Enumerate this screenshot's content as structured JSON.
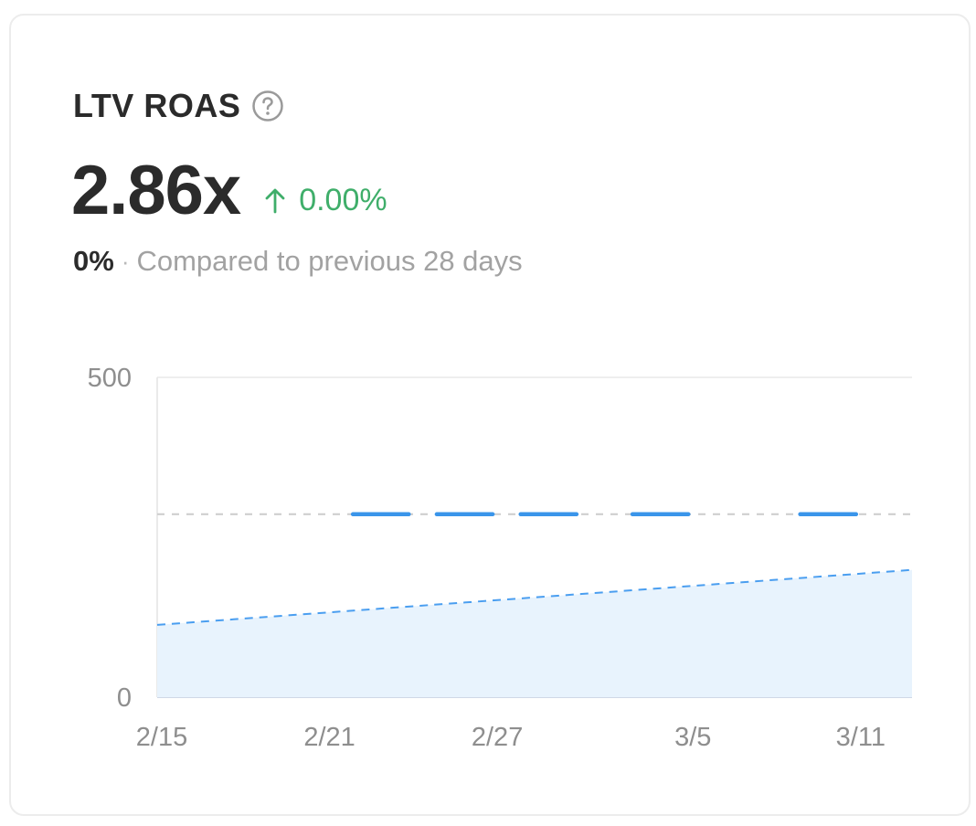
{
  "card": {
    "title": "LTV ROAS",
    "help_icon": "question-circle-icon",
    "value": "2.86x",
    "delta": {
      "icon": "arrow-up-icon",
      "text": "0.00%",
      "color": "#3fae6a"
    },
    "compare": {
      "percent": "0%",
      "separator": "·",
      "text": "Compared to previous 28 days"
    }
  },
  "chart_data": {
    "type": "area",
    "x_ticks": [
      "2/15",
      "2/21",
      "2/27",
      "3/5",
      "3/11"
    ],
    "y_ticks": [
      "0",
      "500"
    ],
    "ylim": [
      0,
      500
    ],
    "xlim": [
      "2/15",
      "3/13"
    ],
    "grid": true,
    "series": [
      {
        "style": "area-dashed",
        "color": "#4a9ef0",
        "fill": "#e8f3fd",
        "x": [
          "2/15",
          "3/13"
        ],
        "y": [
          113,
          199
        ]
      }
    ],
    "reference_line": {
      "y": 286,
      "color": "#cccccc",
      "highlight_color": "#3a95ea",
      "highlight_x_ranges": [
        [
          "2/22",
          "2/24"
        ],
        [
          "2/25",
          "2/27"
        ],
        [
          "2/28",
          "3/1"
        ],
        [
          "3/3",
          "3/5"
        ],
        [
          "3/9",
          "3/11"
        ]
      ]
    }
  }
}
